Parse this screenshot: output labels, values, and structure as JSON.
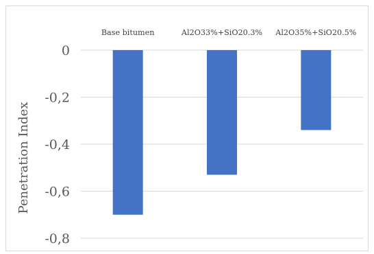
{
  "chart_data": {
    "type": "bar",
    "title": "",
    "xlabel": "",
    "ylabel": "Penetration Index",
    "categories": [
      "Base bitumen",
      "Al2O33%+SiO20.3%",
      "Al2O35%+SiO20.5%"
    ],
    "values": [
      -0.7,
      -0.53,
      -0.34
    ],
    "ylim": [
      -0.8,
      0
    ],
    "yticks": [
      0,
      -0.2,
      -0.4,
      -0.6,
      -0.8
    ],
    "ytick_labels": [
      "0",
      "-0,2",
      "-0,4",
      "-0,6",
      "-0,8"
    ],
    "grid": true,
    "legend": "none",
    "category_axis_position": "top",
    "bar_color": "#4472c4",
    "grid_color": "#d9d9d9"
  }
}
